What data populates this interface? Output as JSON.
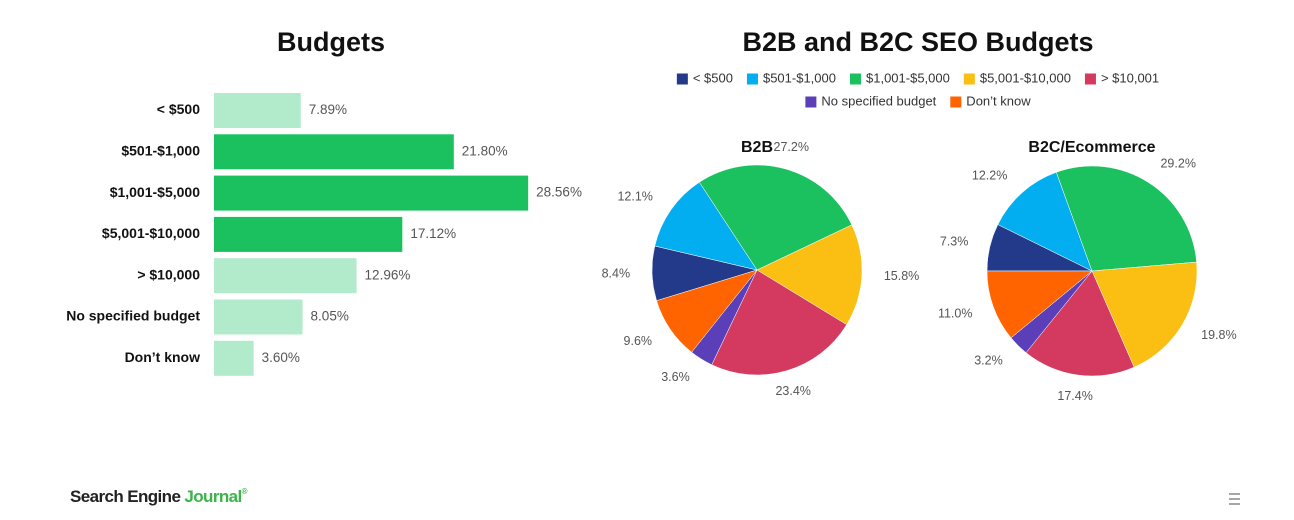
{
  "chart_data": [
    {
      "type": "bar",
      "orientation": "horizontal",
      "title": "Budgets",
      "categories": [
        "< $500",
        "$501-$1,000",
        "$1,001-$5,000",
        "$5,001-$10,000",
        "> $10,000",
        "No specified budget",
        "Don’t know"
      ],
      "values": [
        7.89,
        21.8,
        28.56,
        17.12,
        12.96,
        8.05,
        3.6
      ],
      "value_labels": [
        "7.89%",
        "21.80%",
        "28.56%",
        "17.12%",
        "12.96%",
        "8.05%",
        "3.60%"
      ],
      "colors": [
        "#b1ebcb",
        "#1bc15f",
        "#1bc15f",
        "#1bc15f",
        "#b1ebcb",
        "#b1ebcb",
        "#b1ebcb"
      ]
    },
    {
      "type": "pie",
      "title": "B2B",
      "values": [
        8.4,
        12.1,
        27.2,
        15.8,
        23.4,
        3.6,
        9.6
      ],
      "value_labels": [
        "8.4%",
        "12.1%",
        "27.2%",
        "15.8%",
        "23.4%",
        "3.6%",
        "9.6%"
      ]
    },
    {
      "type": "pie",
      "title": "B2C/Ecommerce",
      "values": [
        7.3,
        12.2,
        29.2,
        19.8,
        17.4,
        3.2,
        11.0
      ],
      "value_labels": [
        "7.3%",
        "12.2%",
        "29.2%",
        "19.8%",
        "17.4%",
        "3.2%",
        "11.0%"
      ]
    }
  ],
  "pie_panel": {
    "title": "B2B and B2C SEO Budgets",
    "legend": [
      "< $500",
      "$501-$1,000",
      "$1,001-$5,000",
      "$5,001-$10,000",
      "> $10,001",
      "No specified budget",
      "Don’t know"
    ],
    "colors": [
      "#233a8b",
      "#03aef0",
      "#1bc15f",
      "#fbbf14",
      "#d4395f",
      "#5b3fb8",
      "#ff6400"
    ]
  },
  "footer": {
    "logo_main": "Search Engine",
    "logo_accent": "Journal",
    "logo_mark": "®"
  }
}
